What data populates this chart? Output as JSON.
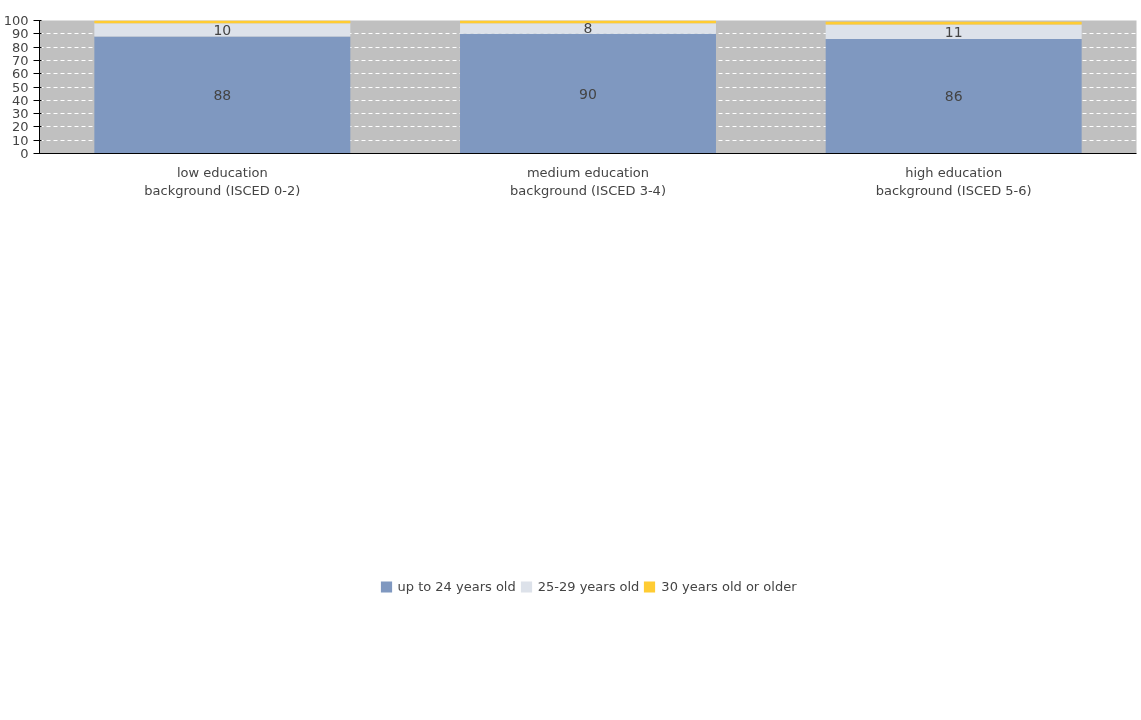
{
  "chart_data": {
    "type": "bar",
    "stacked": true,
    "categories": [
      "low education background (ISCED 0-2)",
      "medium education background (ISCED 3-4)",
      "high education background (ISCED 5-6)"
    ],
    "series": [
      {
        "name": "up to 24 years old",
        "color": "#7f98c0",
        "values": [
          88,
          90,
          86
        ],
        "value_labels": [
          "88",
          "90",
          "86"
        ]
      },
      {
        "name": "25-29 years old",
        "color": "#dde2ea",
        "values": [
          10,
          8,
          11
        ],
        "value_labels": [
          "10",
          "8",
          "11"
        ]
      },
      {
        "name": "30 years old or older",
        "color": "#ffcc33",
        "values": [
          2,
          2,
          2
        ],
        "value_labels": [
          null,
          null,
          null
        ]
      }
    ],
    "ylim": [
      0,
      100
    ],
    "yticks": [
      0,
      10,
      20,
      30,
      40,
      50,
      60,
      70,
      80,
      90,
      100
    ],
    "grid": "y",
    "legend": "bottom"
  }
}
